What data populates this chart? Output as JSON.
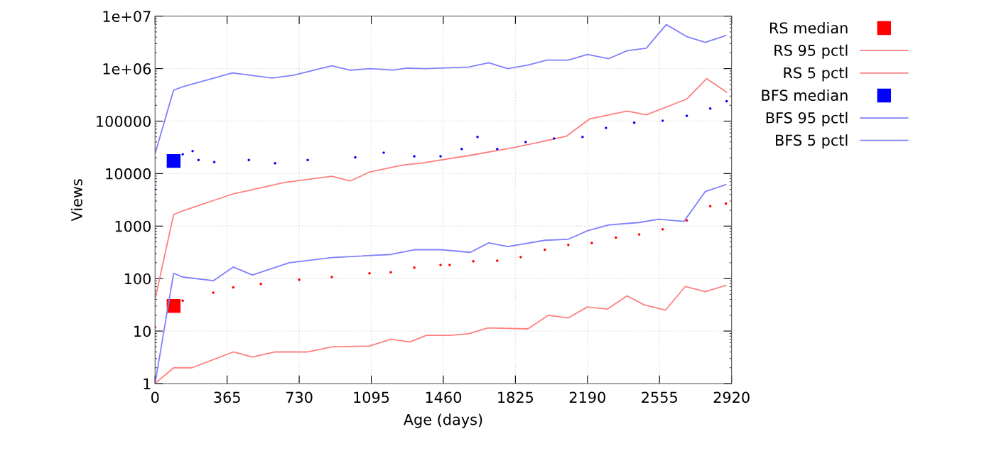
{
  "chart_data": {
    "type": "line",
    "xlabel": "Age (days)",
    "ylabel": "Views",
    "log": "y",
    "grid": true,
    "legend": "right",
    "xlim": [
      0,
      2920
    ],
    "xticks": [
      0,
      365,
      730,
      1095,
      1460,
      1825,
      2190,
      2555,
      2920
    ],
    "ylim": [
      1,
      10000000
    ],
    "yticks": [
      1,
      10,
      100,
      1000,
      10000,
      100000,
      {
        "value": 1000000,
        "label": "1e+06"
      },
      {
        "value": 10000000,
        "label": "1e+07"
      }
    ],
    "series": [
      {
        "name": "RS median",
        "type": "scatter",
        "marker": "square",
        "color": "#ff0000",
        "x": [
          0,
          94,
          140,
          295,
          396,
          536,
          730,
          895,
          1086,
          1194,
          1313,
          1446,
          1492,
          1612,
          1733,
          1852,
          1974,
          2093,
          2212,
          2334,
          2452,
          2571,
          2693,
          2812,
          2891
        ],
        "values": [
          12,
          30,
          38,
          54,
          68,
          79,
          95,
          107,
          126,
          132,
          162,
          182,
          182,
          214,
          219,
          257,
          355,
          437,
          479,
          603,
          692,
          871,
          1288,
          2399,
          2692
        ]
      },
      {
        "name": "RS 95 pctl",
        "color": "#ff8080",
        "x": [
          0,
          94,
          140,
          392,
          475,
          654,
          895,
          989,
          1086,
          1255,
          1349,
          1600,
          1825,
          2082,
          2201,
          2391,
          2488,
          2693,
          2794,
          2895
        ],
        "values": [
          40,
          1660,
          1950,
          4070,
          4790,
          6760,
          8910,
          7240,
          10700,
          14500,
          15800,
          22400,
          31600,
          51300,
          110000,
          155000,
          132000,
          263000,
          646000,
          355000
        ]
      },
      {
        "name": "RS 5 pctl",
        "color": "#ff8080",
        "x": [
          0,
          94,
          187,
          396,
          493,
          608,
          773,
          895,
          1086,
          1194,
          1291,
          1374,
          1492,
          1589,
          1686,
          1888,
          1992,
          2093,
          2190,
          2291,
          2391,
          2477,
          2585,
          2686,
          2787,
          2891
        ],
        "values": [
          1,
          2,
          2,
          4,
          3.2,
          4,
          4,
          5,
          5.2,
          7,
          6.2,
          8.3,
          8.3,
          8.9,
          11.5,
          11,
          20,
          17.8,
          28.8,
          26.3,
          46.8,
          31.6,
          25.1,
          70.8,
          56.2,
          74.1
        ]
      },
      {
        "name": "BFS median",
        "type": "scatter",
        "marker": "square",
        "color": "#0000ff",
        "x": [
          0,
          94,
          140,
          190,
          220,
          300,
          475,
          608,
          773,
          1014,
          1158,
          1313,
          1446,
          1553,
          1633,
          1733,
          1877,
          2021,
          2165,
          2284,
          2427,
          2571,
          2693,
          2812,
          2895
        ],
        "values": [
          5000,
          17400,
          23400,
          26900,
          18200,
          16600,
          18200,
          15800,
          18200,
          20400,
          25100,
          21400,
          21400,
          29500,
          50100,
          29500,
          39800,
          46800,
          50100,
          74100,
          93300,
          102000,
          126000,
          174000,
          240000
        ]
      },
      {
        "name": "BFS 95 pctl",
        "color": "#8080ff",
        "x": [
          0,
          94,
          140,
          392,
          593,
          701,
          895,
          989,
          1086,
          1205,
          1277,
          1374,
          1589,
          1690,
          1787,
          1888,
          1985,
          2093,
          2190,
          2298,
          2391,
          2488,
          2589,
          2693,
          2787,
          2891
        ],
        "values": [
          24000,
          390000,
          450000,
          830000,
          660000,
          750000,
          1130000,
          930000,
          1000000,
          940000,
          1020000,
          1000000,
          1070000,
          1290000,
          1000000,
          1170000,
          1450000,
          1450000,
          1860000,
          1550000,
          2190000,
          2450000,
          6900000,
          4070000,
          3160000,
          4270000
        ]
      },
      {
        "name": "BFS 5 pctl",
        "color": "#8080ff",
        "x": [
          0,
          94,
          140,
          295,
          396,
          493,
          680,
          895,
          1194,
          1313,
          1446,
          1597,
          1690,
          1787,
          1974,
          2093,
          2190,
          2298,
          2452,
          2549,
          2679,
          2787,
          2891
        ],
        "values": [
          1,
          126,
          107,
          91,
          166,
          117,
          200,
          251,
          288,
          355,
          355,
          316,
          479,
          407,
          537,
          562,
          813,
          1050,
          1170,
          1350,
          1230,
          4570,
          6170
        ]
      }
    ]
  }
}
